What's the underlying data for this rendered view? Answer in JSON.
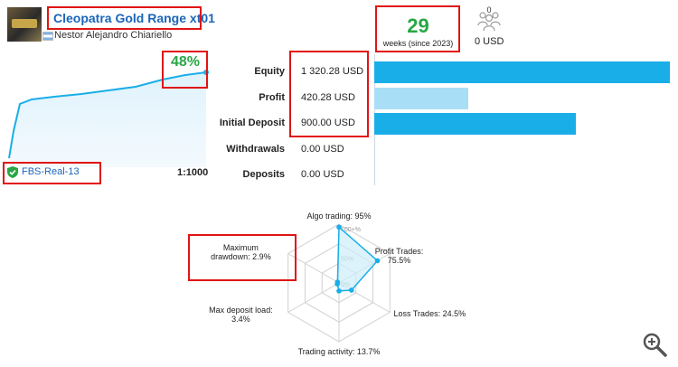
{
  "signal": {
    "title": "Cleopatra Gold Range xt01",
    "author": "Nestor Alejandro Chiariello",
    "logo_icon": "gold-bar-logo-icon",
    "flag_icon": "argentina-flag-icon"
  },
  "growth": {
    "percent": "48%"
  },
  "account": {
    "name": "FBS-Real-13",
    "leverage": "1:1000",
    "icon": "shield-check-icon"
  },
  "stats": {
    "weeks": "29",
    "weeks_label": "weeks (since 2023)",
    "subscribers": "0",
    "copy_funds": "0 USD"
  },
  "financials": [
    {
      "label": "Equity",
      "value": "1 320.28 USD",
      "amount": 1320.28,
      "color": "#1aaee8"
    },
    {
      "label": "Profit",
      "value": "420.28 USD",
      "amount": 420.28,
      "color": "#a9dff6"
    },
    {
      "label": "Initial Deposit",
      "value": "900.00 USD",
      "amount": 900.0,
      "color": "#1aaee8"
    },
    {
      "label": "Withdrawals",
      "value": "0.00 USD",
      "amount": 0,
      "color": "#1aaee8"
    },
    {
      "label": "Deposits",
      "value": "0.00 USD",
      "amount": 0,
      "color": "#1aaee8"
    }
  ],
  "radar": {
    "ring_labels": [
      "100+%",
      "50%",
      "0%"
    ],
    "axes": [
      {
        "label": "Algo trading: 95%",
        "value": 95
      },
      {
        "label": "Profit Trades:\n75.5%",
        "value": 75.5
      },
      {
        "label": "Loss Trades: 24.5%",
        "value": 24.5
      },
      {
        "label": "Trading activity: 13.7%",
        "value": 13.7
      },
      {
        "label": "Max deposit load:\n3.4%",
        "value": 3.4
      },
      {
        "label": "Maximum\ndrawdown: 2.9%",
        "value": 2.9
      }
    ],
    "colors": {
      "line": "#1aaee8",
      "fill": "#cfeefa",
      "grid": "#d0d0d0"
    }
  },
  "zoom": {
    "icon": "zoom-in-icon"
  }
}
